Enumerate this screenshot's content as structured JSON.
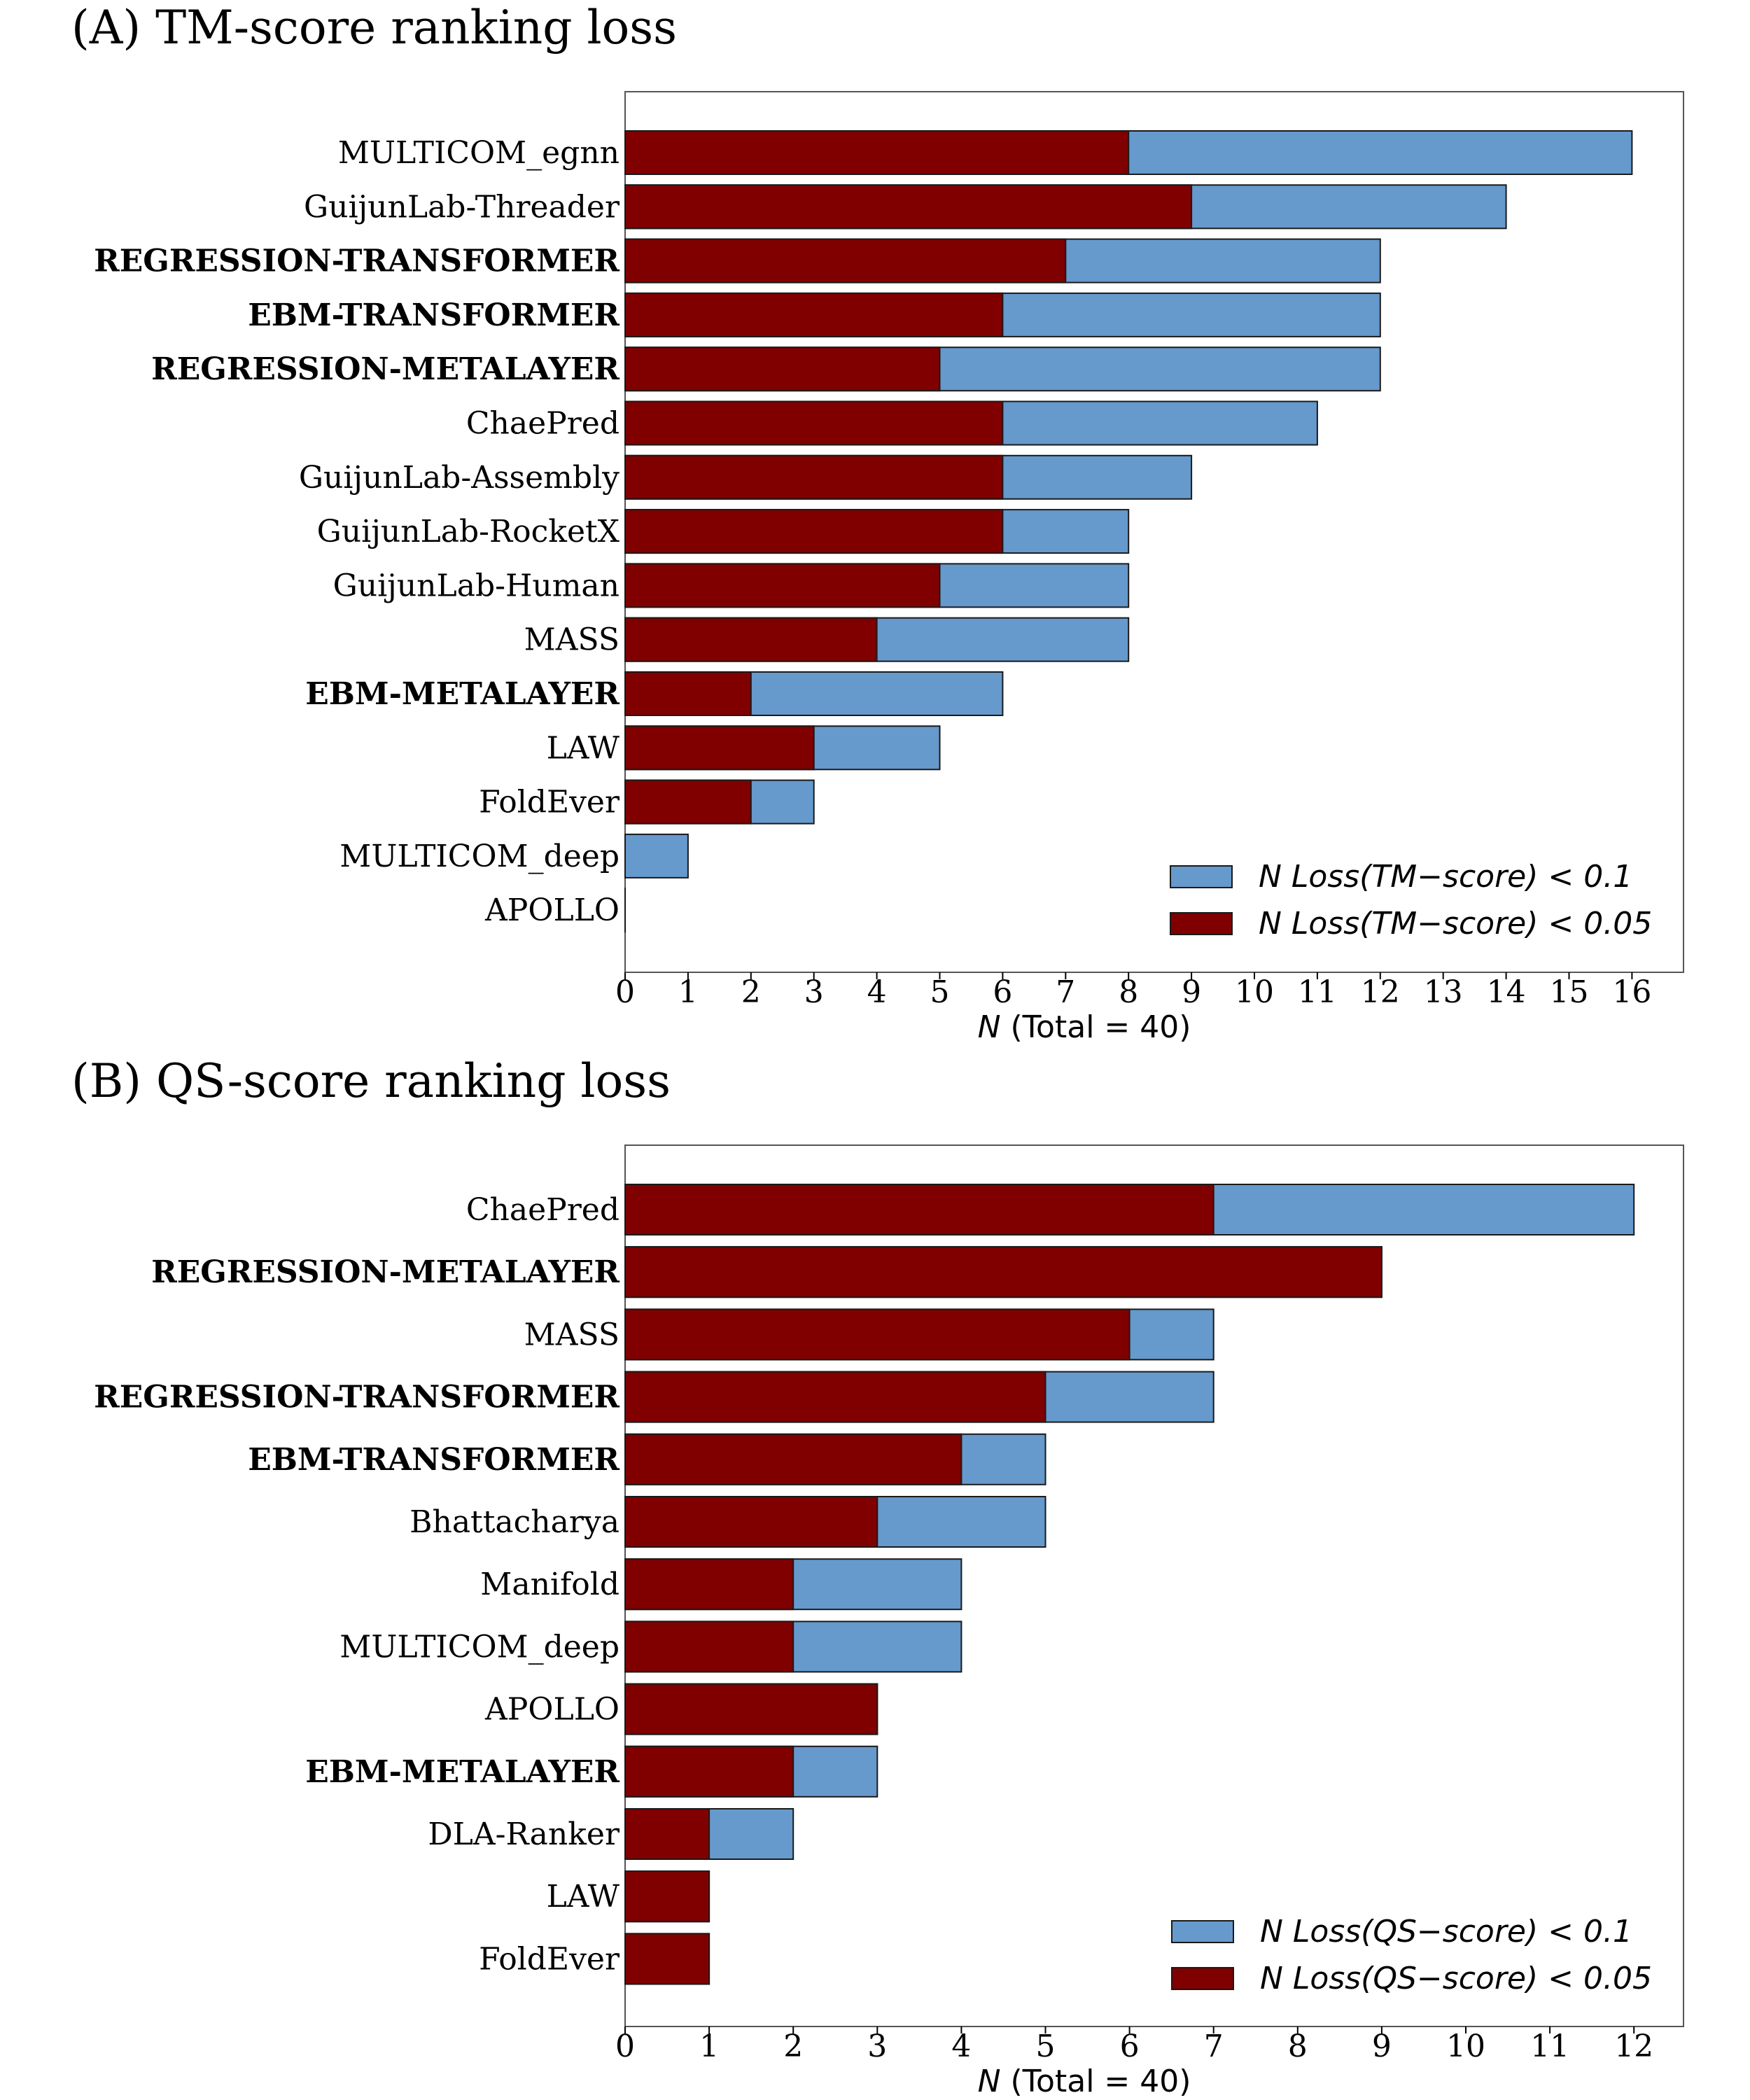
{
  "chart_data": [
    {
      "type": "bar",
      "orientation": "horizontal",
      "stacking": "overlay",
      "title": "(A) TM-score ranking loss",
      "xlabel": "N (Total = 40)",
      "xlabel_italic_part": "N",
      "xlabel_rest": " (Total = 40)",
      "xlim": [
        0,
        16
      ],
      "xticks": [
        "0",
        "1",
        "2",
        "3",
        "4",
        "5",
        "6",
        "7",
        "8",
        "9",
        "10",
        "11",
        "12",
        "13",
        "14",
        "15",
        "16"
      ],
      "categories": [
        "MULTICOM_egnn",
        "GuijunLab-Threader",
        "REGRESSION-TRANSFORMER",
        "EBM-TRANSFORMER",
        "REGRESSION-METALAYER",
        "ChaePred",
        "GuijunLab-Assembly",
        "GuijunLab-RocketX",
        "GuijunLab-Human",
        "MASS",
        "EBM-METALAYER",
        "LAW",
        "FoldEver",
        "MULTICOM_deep",
        "APOLLO"
      ],
      "bold_categories": [
        "REGRESSION-TRANSFORMER",
        "EBM-TRANSFORMER",
        "REGRESSION-METALAYER",
        "EBM-METALAYER"
      ],
      "series": [
        {
          "name": "N Loss(TM−score) < 0.1",
          "color": "#6699cc",
          "values": [
            16,
            14,
            12,
            12,
            12,
            11,
            9,
            8,
            8,
            8,
            6,
            5,
            3,
            1,
            0
          ]
        },
        {
          "name": "N Loss(TM−score) < 0.05",
          "color": "#800000",
          "values": [
            8,
            9,
            7,
            6,
            5,
            6,
            6,
            6,
            5,
            4,
            2,
            3,
            2,
            0,
            0
          ]
        }
      ],
      "legend_position": "lower right",
      "grid": false
    },
    {
      "type": "bar",
      "orientation": "horizontal",
      "stacking": "overlay",
      "title": "(B) QS-score ranking loss",
      "xlabel": "N (Total = 40)",
      "xlabel_italic_part": "N",
      "xlabel_rest": " (Total = 40)",
      "xlim": [
        0,
        12
      ],
      "xticks": [
        "0",
        "1",
        "2",
        "3",
        "4",
        "5",
        "6",
        "7",
        "8",
        "9",
        "10",
        "11",
        "12"
      ],
      "categories": [
        "ChaePred",
        "REGRESSION-METALAYER",
        "MASS",
        "REGRESSION-TRANSFORMER",
        "EBM-TRANSFORMER",
        "Bhattacharya",
        "Manifold",
        "MULTICOM_deep",
        "APOLLO",
        "EBM-METALAYER",
        "DLA-Ranker",
        "LAW",
        "FoldEver"
      ],
      "bold_categories": [
        "REGRESSION-METALAYER",
        "REGRESSION-TRANSFORMER",
        "EBM-TRANSFORMER",
        "EBM-METALAYER"
      ],
      "series": [
        {
          "name": "N Loss(QS−score) < 0.1",
          "color": "#6699cc",
          "values": [
            12,
            9,
            7,
            7,
            5,
            5,
            4,
            4,
            3,
            3,
            2,
            1,
            1
          ]
        },
        {
          "name": "N Loss(QS−score) < 0.05",
          "color": "#800000",
          "values": [
            7,
            9,
            6,
            5,
            4,
            3,
            2,
            2,
            3,
            2,
            1,
            1,
            1
          ]
        }
      ],
      "legend_position": "lower right",
      "grid": false
    }
  ]
}
